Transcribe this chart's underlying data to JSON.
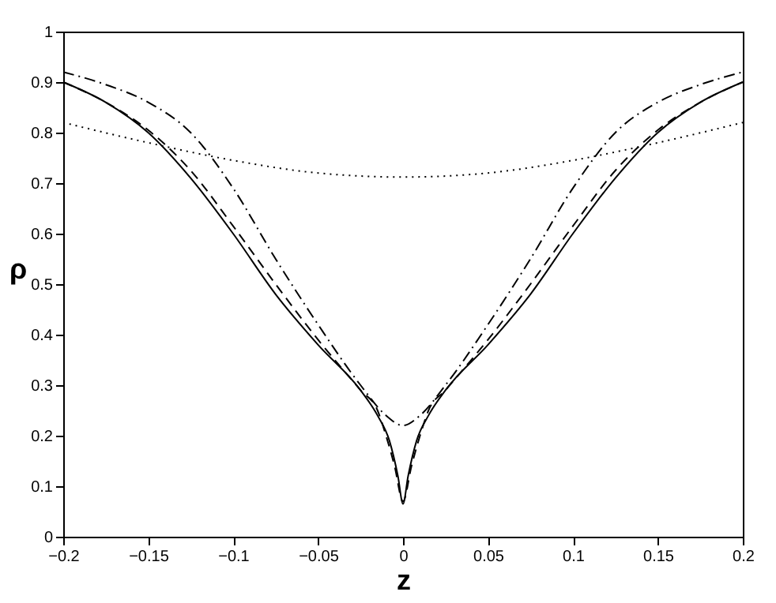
{
  "chart_data": {
    "type": "line",
    "xlabel": "z",
    "ylabel": "ρ",
    "xlim": [
      -0.2,
      0.2
    ],
    "ylim": [
      0,
      1
    ],
    "xticks": [
      -0.2,
      -0.15,
      -0.1,
      -0.05,
      0,
      0.05,
      0.1,
      0.15,
      0.2
    ],
    "yticks": [
      0,
      0.1,
      0.2,
      0.3,
      0.4,
      0.5,
      0.6,
      0.7,
      0.8,
      0.9,
      1
    ],
    "grid": false,
    "series": [
      {
        "color": "#000000",
        "line_style": "solid",
        "x": [
          -0.2,
          -0.175,
          -0.15,
          -0.125,
          -0.1,
          -0.075,
          -0.05,
          -0.025,
          -0.015,
          -0.008,
          -0.003,
          0,
          0.003,
          0.008,
          0.015,
          0.025,
          0.05,
          0.075,
          0.1,
          0.125,
          0.15,
          0.175,
          0.2
        ],
        "values": [
          0.9,
          0.86,
          0.8,
          0.71,
          0.6,
          0.48,
          0.38,
          0.29,
          0.24,
          0.19,
          0.12,
          0.065,
          0.12,
          0.19,
          0.24,
          0.29,
          0.38,
          0.48,
          0.6,
          0.71,
          0.8,
          0.86,
          0.9
        ]
      },
      {
        "color": "#000000",
        "line_style": "dashed",
        "x": [
          -0.2,
          -0.175,
          -0.15,
          -0.125,
          -0.1,
          -0.075,
          -0.05,
          -0.025,
          -0.015,
          -0.01,
          -0.005,
          0,
          0.005,
          0.01,
          0.015,
          0.025,
          0.05,
          0.075,
          0.1,
          0.125,
          0.15,
          0.175,
          0.2
        ],
        "values": [
          0.9,
          0.86,
          0.805,
          0.725,
          0.615,
          0.5,
          0.39,
          0.29,
          0.25,
          0.2,
          0.14,
          0.07,
          0.14,
          0.2,
          0.25,
          0.29,
          0.39,
          0.5,
          0.615,
          0.725,
          0.805,
          0.86,
          0.9
        ]
      },
      {
        "color": "#000000",
        "line_style": "dashdot",
        "x": [
          -0.2,
          -0.175,
          -0.15,
          -0.125,
          -0.1,
          -0.075,
          -0.05,
          -0.025,
          -0.01,
          0,
          0.01,
          0.025,
          0.05,
          0.075,
          0.1,
          0.125,
          0.15,
          0.175,
          0.2
        ],
        "values": [
          0.92,
          0.895,
          0.86,
          0.8,
          0.69,
          0.55,
          0.42,
          0.3,
          0.24,
          0.22,
          0.24,
          0.3,
          0.42,
          0.55,
          0.69,
          0.8,
          0.86,
          0.895,
          0.92
        ]
      },
      {
        "color": "#000000",
        "line_style": "dotted",
        "x": [
          -0.2,
          -0.15,
          -0.1,
          -0.05,
          0,
          0.05,
          0.1,
          0.15,
          0.2
        ],
        "values": [
          0.82,
          0.78,
          0.745,
          0.72,
          0.712,
          0.72,
          0.745,
          0.78,
          0.82
        ]
      }
    ]
  }
}
